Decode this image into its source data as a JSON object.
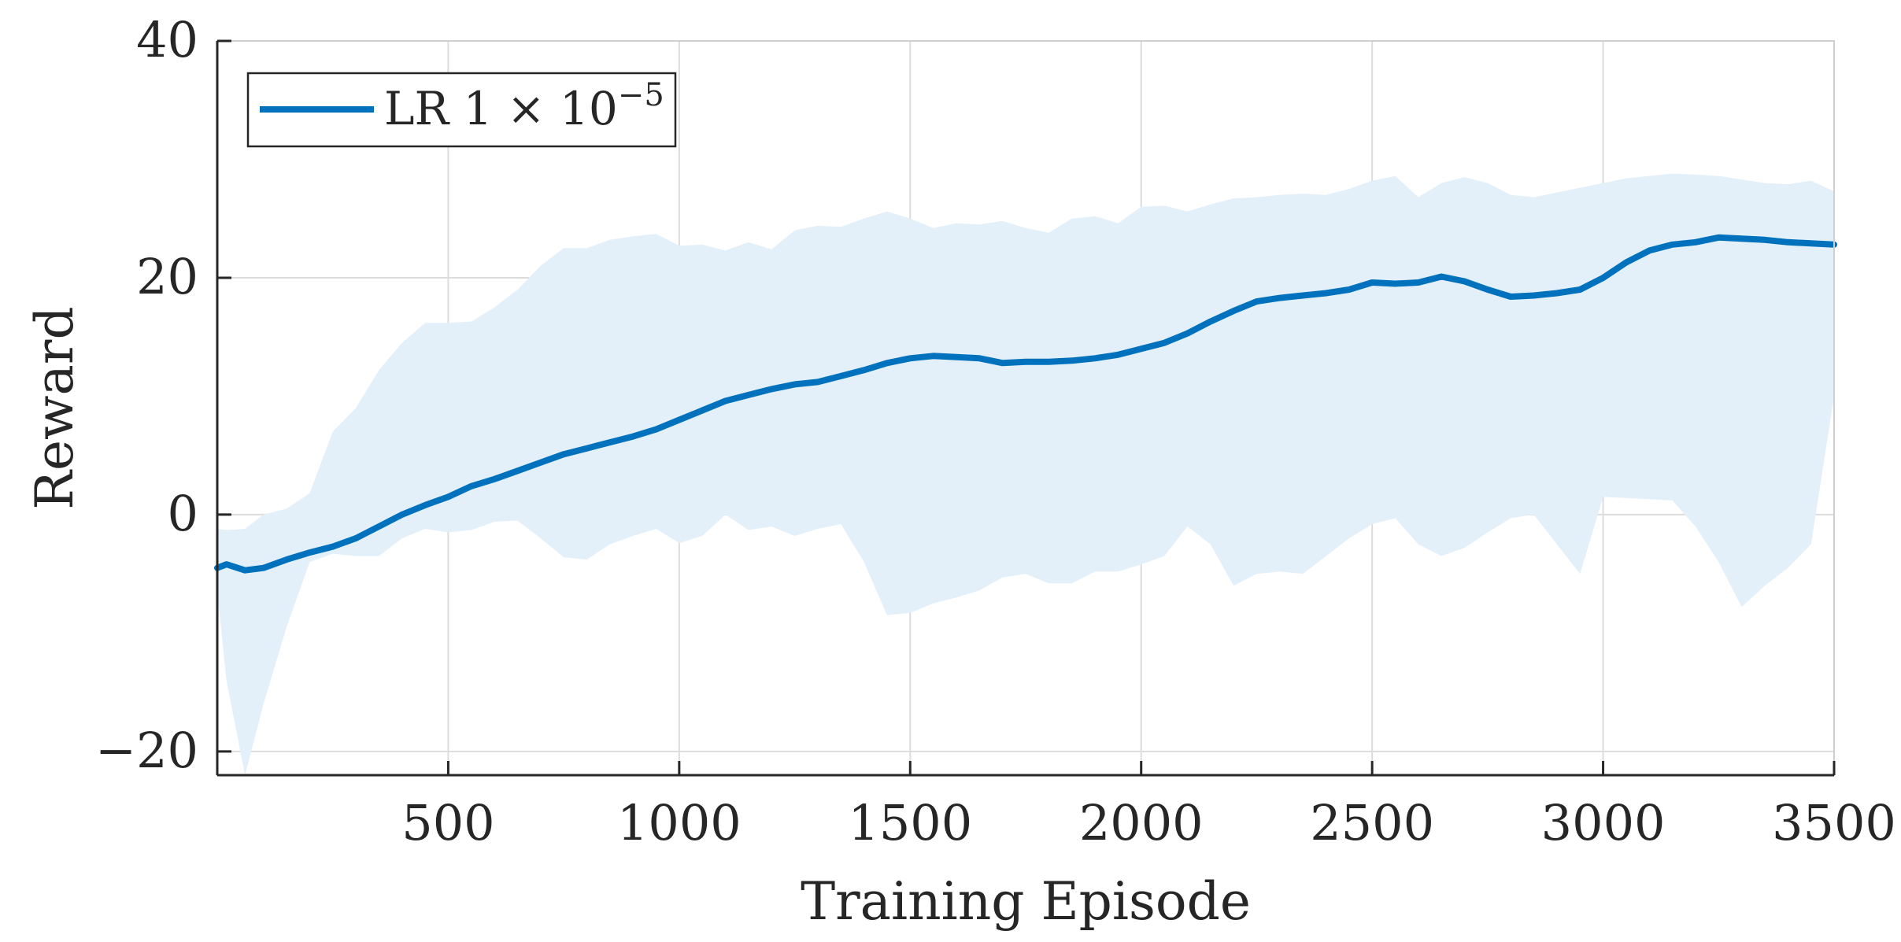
{
  "colors": {
    "line": "#0072bd",
    "band": "#e3f0f9",
    "axis": "#262626",
    "grid": "#dcdcdc"
  },
  "chart_data": {
    "type": "line",
    "title": "",
    "xlabel": "Training Episode",
    "ylabel": "Reward",
    "xlim": [
      0,
      3500
    ],
    "ylim": [
      -22,
      40
    ],
    "xticks": [
      500,
      1000,
      1500,
      2000,
      2500,
      3000,
      3500
    ],
    "xtick_labels": [
      "500",
      "1000",
      "1500",
      "2000",
      "2500",
      "3000",
      "3500"
    ],
    "yticks": [
      -20,
      0,
      20,
      40
    ],
    "ytick_labels": [
      "−20",
      "0",
      "20",
      "40"
    ],
    "grid": true,
    "legend": {
      "placement": "top-left",
      "entries": [
        {
          "label_main": "LR 1 × 10",
          "label_sup": "−5"
        }
      ]
    },
    "series": [
      {
        "name": "LR 1 × 10^−5",
        "x": [
          0,
          20,
          60,
          100,
          150,
          200,
          250,
          300,
          350,
          400,
          450,
          500,
          550,
          600,
          650,
          700,
          750,
          800,
          850,
          900,
          950,
          1000,
          1050,
          1100,
          1150,
          1200,
          1250,
          1300,
          1350,
          1400,
          1450,
          1500,
          1550,
          1600,
          1650,
          1700,
          1750,
          1800,
          1850,
          1900,
          1950,
          2000,
          2050,
          2100,
          2150,
          2200,
          2250,
          2300,
          2350,
          2400,
          2450,
          2500,
          2550,
          2600,
          2650,
          2700,
          2750,
          2800,
          2850,
          2900,
          2950,
          3000,
          3050,
          3100,
          3150,
          3200,
          3250,
          3300,
          3350,
          3400,
          3450,
          3500
        ],
        "y": [
          -4.5,
          -4.2,
          -4.7,
          -4.5,
          -3.8,
          -3.2,
          -2.7,
          -2.0,
          -1.0,
          0.0,
          0.8,
          1.5,
          2.4,
          3.0,
          3.7,
          4.4,
          5.1,
          5.6,
          6.1,
          6.6,
          7.2,
          8.0,
          8.8,
          9.6,
          10.1,
          10.6,
          11.0,
          11.2,
          11.7,
          12.2,
          12.8,
          13.2,
          13.4,
          13.3,
          13.2,
          12.8,
          12.9,
          12.9,
          13.0,
          13.2,
          13.5,
          14.0,
          14.5,
          15.3,
          16.3,
          17.2,
          18.0,
          18.3,
          18.5,
          18.7,
          19.0,
          19.6,
          19.5,
          19.6,
          20.1,
          19.7,
          19.0,
          18.4,
          18.5,
          18.7,
          19.0,
          20.0,
          21.3,
          22.3,
          22.8,
          23.0,
          23.4,
          23.3,
          23.2,
          23.0,
          22.9,
          22.8
        ],
        "band_x": [
          0,
          20,
          60,
          100,
          150,
          200,
          250,
          300,
          350,
          400,
          450,
          500,
          550,
          600,
          650,
          700,
          750,
          800,
          850,
          900,
          950,
          1000,
          1050,
          1100,
          1150,
          1200,
          1250,
          1300,
          1350,
          1400,
          1450,
          1500,
          1550,
          1600,
          1650,
          1700,
          1750,
          1800,
          1850,
          1900,
          1950,
          2000,
          2050,
          2100,
          2150,
          2200,
          2250,
          2300,
          2350,
          2400,
          2450,
          2500,
          2550,
          2600,
          2650,
          2700,
          2750,
          2800,
          2850,
          2900,
          2950,
          3000,
          3050,
          3100,
          3150,
          3200,
          3250,
          3300,
          3350,
          3400,
          3450,
          3500
        ],
        "upper": [
          -1.2,
          -1.3,
          -1.2,
          0.0,
          0.5,
          1.8,
          7.0,
          9.0,
          12.2,
          14.5,
          16.2,
          16.2,
          16.3,
          17.5,
          19.0,
          21.0,
          22.5,
          22.5,
          23.2,
          23.5,
          23.7,
          22.7,
          22.8,
          22.3,
          23.0,
          22.4,
          24.0,
          24.4,
          24.3,
          25.0,
          25.6,
          25.0,
          24.2,
          24.6,
          24.5,
          24.8,
          24.2,
          23.8,
          25.0,
          25.2,
          24.6,
          26.0,
          26.1,
          25.6,
          26.2,
          26.7,
          26.8,
          27.0,
          27.1,
          27.0,
          27.5,
          28.2,
          28.6,
          26.8,
          28.0,
          28.5,
          28.0,
          27.0,
          26.8,
          27.2,
          27.6,
          28.0,
          28.4,
          28.6,
          28.8,
          28.7,
          28.6,
          28.3,
          28.0,
          27.9,
          28.2,
          27.3
        ],
        "lower": [
          -6.5,
          -14.0,
          -22.0,
          -16.0,
          -9.5,
          -4.0,
          -3.3,
          -3.5,
          -3.5,
          -2.0,
          -1.2,
          -1.5,
          -1.3,
          -0.6,
          -0.5,
          -2.0,
          -3.6,
          -3.8,
          -2.5,
          -1.8,
          -1.2,
          -2.4,
          -1.8,
          0.0,
          -1.3,
          -1.0,
          -1.8,
          -1.2,
          -0.8,
          -4.0,
          -8.5,
          -8.3,
          -7.5,
          -7.0,
          -6.4,
          -5.3,
          -5.0,
          -5.8,
          -5.8,
          -4.8,
          -4.8,
          -4.2,
          -3.5,
          -1.0,
          -2.5,
          -6.0,
          -5.0,
          -4.8,
          -5.0,
          -3.5,
          -2.0,
          -0.8,
          -0.3,
          -2.5,
          -3.5,
          -2.8,
          -1.5,
          -0.3,
          0.0,
          -2.5,
          -5.0,
          1.5,
          1.4,
          1.3,
          1.2,
          -1.0,
          -4.0,
          -7.8,
          -6.0,
          -4.5,
          -2.5,
          10.0
        ]
      }
    ]
  }
}
